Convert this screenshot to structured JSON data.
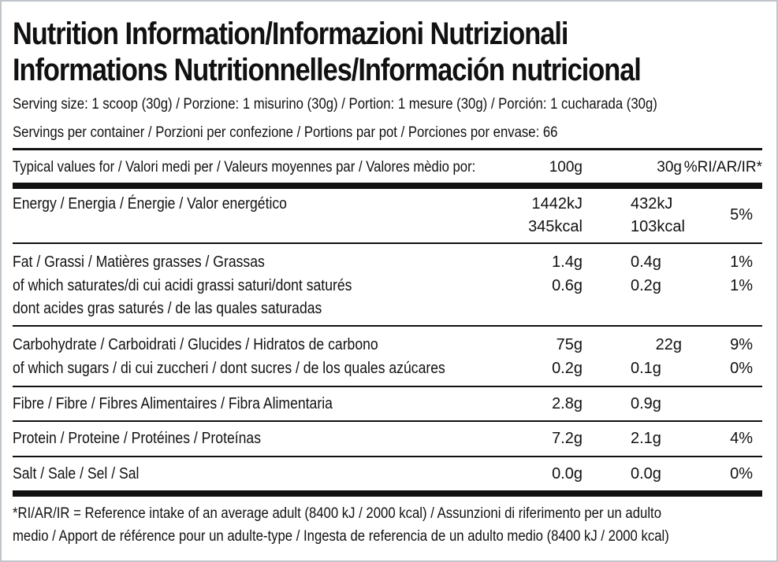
{
  "title": {
    "line1": "Nutrition Information/Informazioni Nutrizionali",
    "line2": "Informations Nutritionnelles/Información nutricional"
  },
  "serving_size": "Serving size: 1 scoop (30g) / Porzione: 1 misurino (30g) / Portion: 1 mesure (30g) / Porción: 1 cucharada (30g)",
  "servings_per_container": "Servings per container / Porzioni per confezione / Portions par pot / Porciones por envase: 66",
  "table": {
    "header": {
      "label": "Typical values for / Valori medi per / Valeurs moyennes par / Valores mèdio por:",
      "col_100g": "100g",
      "col_30g": "30g",
      "col_ri": "%RI/AR/IR*"
    },
    "energy": {
      "label": "Energy / Energia / Énergie / Valor energético",
      "kj_100g": "1442kJ",
      "kcal_100g": "345kcal",
      "kj_30g": "432kJ",
      "kcal_30g": "103kcal",
      "ri": "5%"
    },
    "fat": {
      "label": "Fat / Grassi / Matières grasses / Grassas",
      "v100": "1.4g",
      "v30": "0.4g",
      "ri": "1%",
      "sat_label1": "of which saturates/di cui acidi grassi saturi/dont saturés",
      "sat_label2": "dont acides gras saturés / de las quales saturadas",
      "sat_v100": "0.6g",
      "sat_v30": "0.2g",
      "sat_ri": "1%"
    },
    "carb": {
      "label": "Carbohydrate / Carboidrati / Glucides / Hidratos de carbono",
      "v100": "75g",
      "v30": "22g",
      "ri": "9%",
      "sug_label": "of which sugars / di cui zuccheri / dont sucres / de los quales azúcares",
      "sug_v100": "0.2g",
      "sug_v30": "0.1g",
      "sug_ri": "0%"
    },
    "fibre": {
      "label": "Fibre / Fibre / Fibres Alimentaires / Fibra Alimentaria",
      "v100": "2.8g",
      "v30": "0.9g"
    },
    "protein": {
      "label": "Protein / Proteine / Protéines / Proteínas",
      "v100": "7.2g",
      "v30": "2.1g",
      "ri": "4%"
    },
    "salt": {
      "label": "Salt / Sale / Sel / Sal",
      "v100": "0.0g",
      "v30": "0.0g",
      "ri": "0%"
    }
  },
  "footnote": {
    "line1": "*RI/AR/IR = Reference intake of an average adult (8400 kJ / 2000 kcal)  / Assunzioni di riferimento per un adulto",
    "line2": "medio / Apport de référence pour un adulte-type / Ingesta de referencia de un adulto medio (8400 kJ / 2000 kcal)"
  },
  "colors": {
    "text": "#111111",
    "border": "#bfc5cb",
    "background": "#ffffff"
  }
}
